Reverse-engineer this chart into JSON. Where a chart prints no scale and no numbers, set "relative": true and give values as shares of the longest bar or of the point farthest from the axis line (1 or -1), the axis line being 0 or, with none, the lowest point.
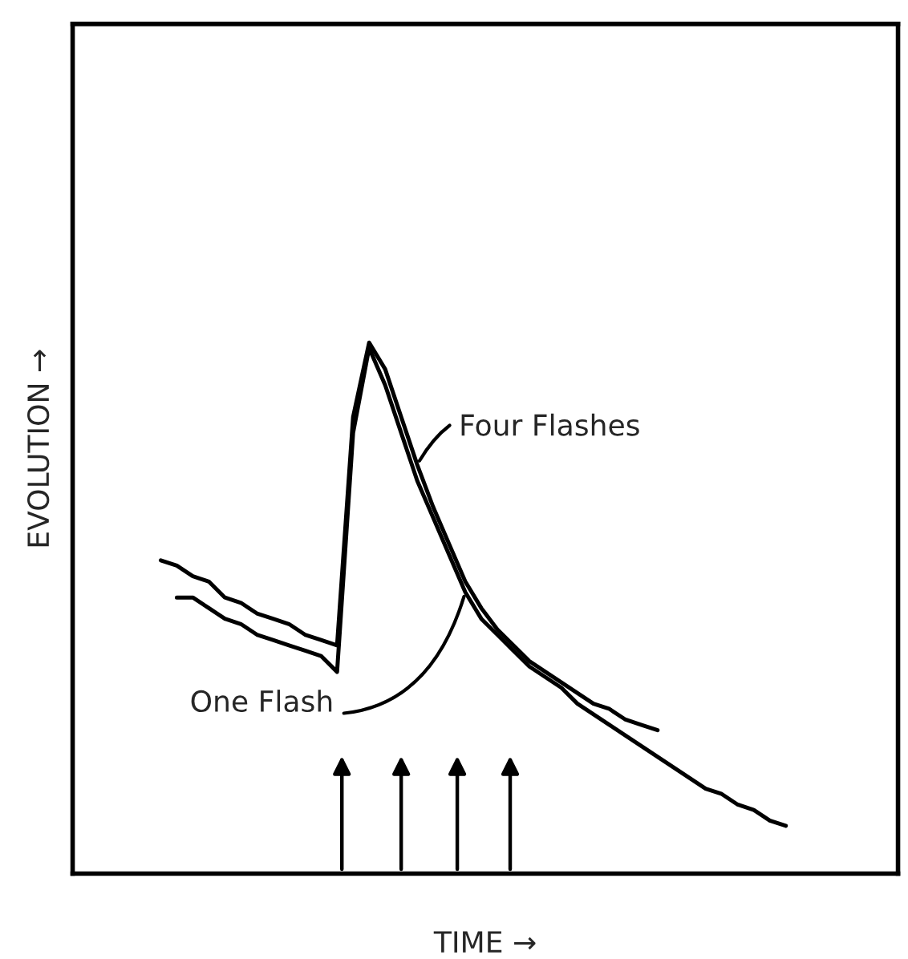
{
  "chart_data": {
    "type": "line",
    "relative": true,
    "xlabel": "TIME →",
    "ylabel": "EVOLUTION →",
    "categories": [
      null,
      null,
      null,
      null,
      null,
      null,
      null,
      null,
      null,
      null,
      null,
      null,
      null,
      null,
      null,
      null,
      null,
      null,
      null,
      null,
      null,
      null,
      null,
      null,
      null,
      null,
      null,
      null,
      null,
      null,
      null,
      null,
      null,
      null,
      null,
      null,
      null,
      null,
      null,
      null
    ],
    "series": [
      {
        "name": "Four Flashes",
        "color": "#000000",
        "values": [
          0.59,
          0.58,
          0.56,
          0.55,
          0.52,
          0.51,
          0.49,
          0.48,
          0.47,
          0.45,
          0.44,
          0.43,
          0.86,
          1.0,
          0.95,
          0.86,
          0.77,
          0.69,
          0.62,
          0.55,
          0.5,
          0.46,
          0.43,
          0.4,
          0.38,
          0.36,
          0.34,
          0.32,
          0.31,
          0.29,
          0.28,
          0.27,
          null,
          null,
          null,
          null,
          null,
          null,
          null,
          null
        ]
      },
      {
        "name": "One Flash",
        "color": "#000000",
        "values": [
          null,
          0.52,
          0.52,
          0.5,
          0.48,
          0.47,
          0.45,
          0.44,
          0.43,
          0.42,
          0.41,
          0.38,
          0.83,
          0.99,
          0.92,
          0.83,
          0.74,
          0.67,
          0.6,
          0.53,
          0.48,
          0.45,
          0.42,
          0.39,
          0.37,
          0.35,
          0.32,
          0.3,
          0.28,
          0.26,
          0.24,
          0.22,
          0.2,
          0.18,
          0.16,
          0.15,
          0.13,
          0.12,
          0.1,
          0.09
        ]
      }
    ],
    "grid": false,
    "marker": "none",
    "line_style": "solid"
  }
}
